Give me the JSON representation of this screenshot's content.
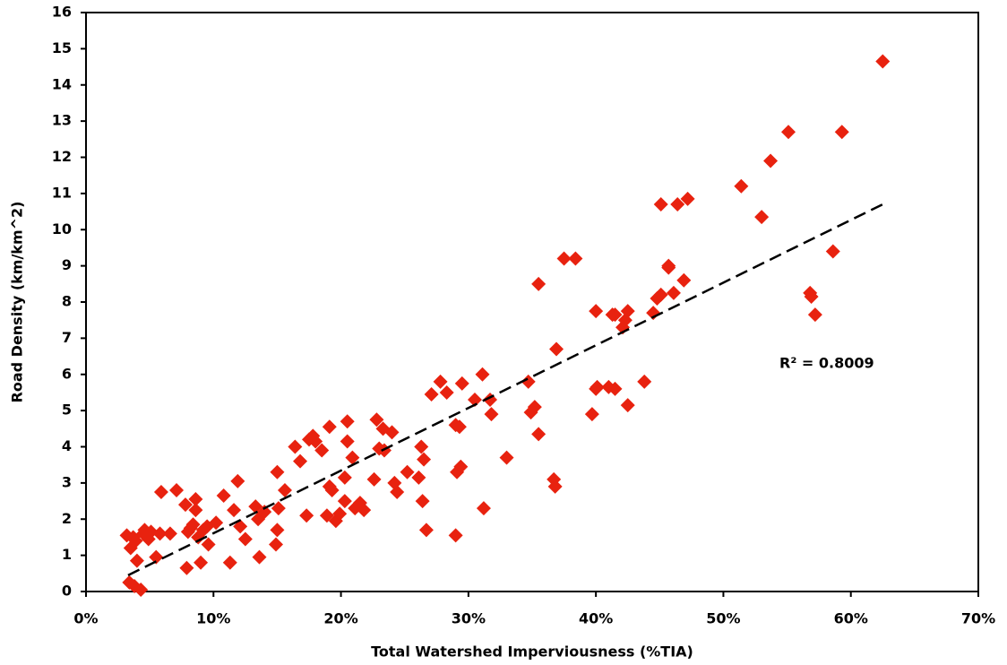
{
  "chart_data": {
    "type": "scatter",
    "x_label": "Total Watershed Imperviousness (%TIA)",
    "y_label": "Road Density (km/km^2)",
    "annotation": "R² = 0.8009",
    "color": "#e8220f",
    "xlim": [
      0,
      70
    ],
    "ylim": [
      0,
      16
    ],
    "xticks": [
      {
        "value": 0,
        "label": "0%"
      },
      {
        "value": 10,
        "label": "10%"
      },
      {
        "value": 20,
        "label": "20%"
      },
      {
        "value": 30,
        "label": "30%"
      },
      {
        "value": 40,
        "label": "40%"
      },
      {
        "value": 50,
        "label": "50%"
      },
      {
        "value": 60,
        "label": "60%"
      },
      {
        "value": 70,
        "label": "70%"
      }
    ],
    "yticks": [
      0,
      1,
      2,
      3,
      4,
      5,
      6,
      7,
      8,
      9,
      10,
      11,
      12,
      13,
      14,
      15,
      16
    ],
    "x": [
      3.2,
      3.5,
      3.7,
      3.9,
      4.0,
      3.4,
      3.8,
      4.3,
      4.5,
      4.6,
      4.9,
      5.1,
      5.5,
      5.8,
      5.9,
      6.6,
      7.1,
      7.8,
      7.9,
      8.0,
      8.2,
      8.4,
      8.6,
      8.6,
      8.8,
      9.0,
      9.2,
      9.5,
      9.6,
      10.2,
      10.8,
      11.3,
      11.6,
      11.9,
      12.1,
      12.5,
      13.3,
      13.5,
      13.6,
      14.0,
      14.9,
      15.0,
      15.0,
      15.1,
      15.6,
      16.4,
      16.8,
      17.3,
      17.5,
      17.8,
      18.0,
      18.5,
      18.9,
      19.1,
      19.1,
      19.3,
      19.6,
      19.9,
      20.3,
      20.3,
      20.5,
      20.5,
      20.9,
      21.1,
      21.5,
      21.8,
      22.6,
      22.8,
      23.0,
      23.3,
      23.4,
      24.0,
      24.2,
      24.4,
      25.2,
      26.1,
      26.3,
      26.4,
      26.5,
      26.7,
      27.1,
      27.8,
      28.3,
      29.0,
      29.0,
      29.1,
      29.3,
      29.4,
      29.5,
      30.5,
      31.1,
      31.2,
      31.7,
      31.8,
      33.0,
      34.7,
      34.9,
      35.2,
      35.5,
      35.5,
      36.7,
      36.8,
      36.9,
      37.5,
      38.4,
      39.7,
      40.0,
      40.1,
      40.0,
      41.0,
      41.3,
      41.5,
      41.5,
      42.1,
      42.3,
      42.5,
      42.5,
      43.8,
      44.5,
      44.8,
      45.1,
      45.1,
      45.7,
      45.7,
      46.1,
      46.4,
      46.9,
      47.2,
      51.4,
      53.0,
      53.7,
      55.1,
      56.8,
      56.9,
      57.2,
      58.6,
      59.3,
      62.5
    ],
    "values": [
      1.55,
      1.2,
      1.5,
      1.4,
      0.85,
      0.25,
      0.15,
      0.05,
      1.6,
      1.7,
      1.45,
      1.65,
      0.95,
      1.6,
      2.75,
      1.6,
      2.8,
      2.4,
      0.65,
      1.65,
      1.75,
      1.85,
      2.55,
      2.25,
      1.5,
      0.8,
      1.7,
      1.8,
      1.3,
      1.9,
      2.65,
      0.8,
      2.25,
      3.05,
      1.8,
      1.45,
      2.35,
      2.0,
      0.95,
      2.2,
      1.3,
      1.7,
      3.3,
      2.3,
      2.8,
      4.0,
      3.6,
      2.1,
      4.2,
      4.3,
      4.15,
      3.9,
      2.1,
      2.9,
      4.55,
      2.8,
      1.95,
      2.15,
      3.15,
      2.5,
      4.7,
      4.15,
      3.7,
      2.3,
      2.45,
      2.25,
      3.1,
      4.75,
      3.95,
      4.5,
      3.9,
      4.4,
      3.0,
      2.75,
      3.3,
      3.15,
      4.0,
      2.5,
      3.65,
      1.7,
      5.45,
      5.8,
      5.5,
      4.6,
      1.55,
      3.3,
      4.55,
      3.45,
      5.75,
      5.3,
      6.0,
      2.3,
      5.3,
      4.9,
      3.7,
      5.8,
      4.95,
      5.1,
      4.35,
      8.5,
      3.1,
      2.9,
      6.7,
      9.2,
      9.2,
      4.9,
      5.6,
      5.65,
      7.75,
      5.65,
      7.65,
      7.65,
      5.6,
      7.3,
      7.5,
      7.75,
      5.15,
      5.8,
      7.7,
      8.1,
      8.2,
      10.7,
      8.95,
      9.0,
      8.25,
      10.7,
      8.6,
      10.85,
      11.2,
      10.35,
      11.9,
      12.7,
      8.25,
      8.15,
      7.65,
      9.4,
      12.7,
      14.65
    ],
    "trendline": {
      "x": [
        3.3,
        62.5
      ],
      "values": [
        0.45,
        10.7
      ]
    }
  }
}
